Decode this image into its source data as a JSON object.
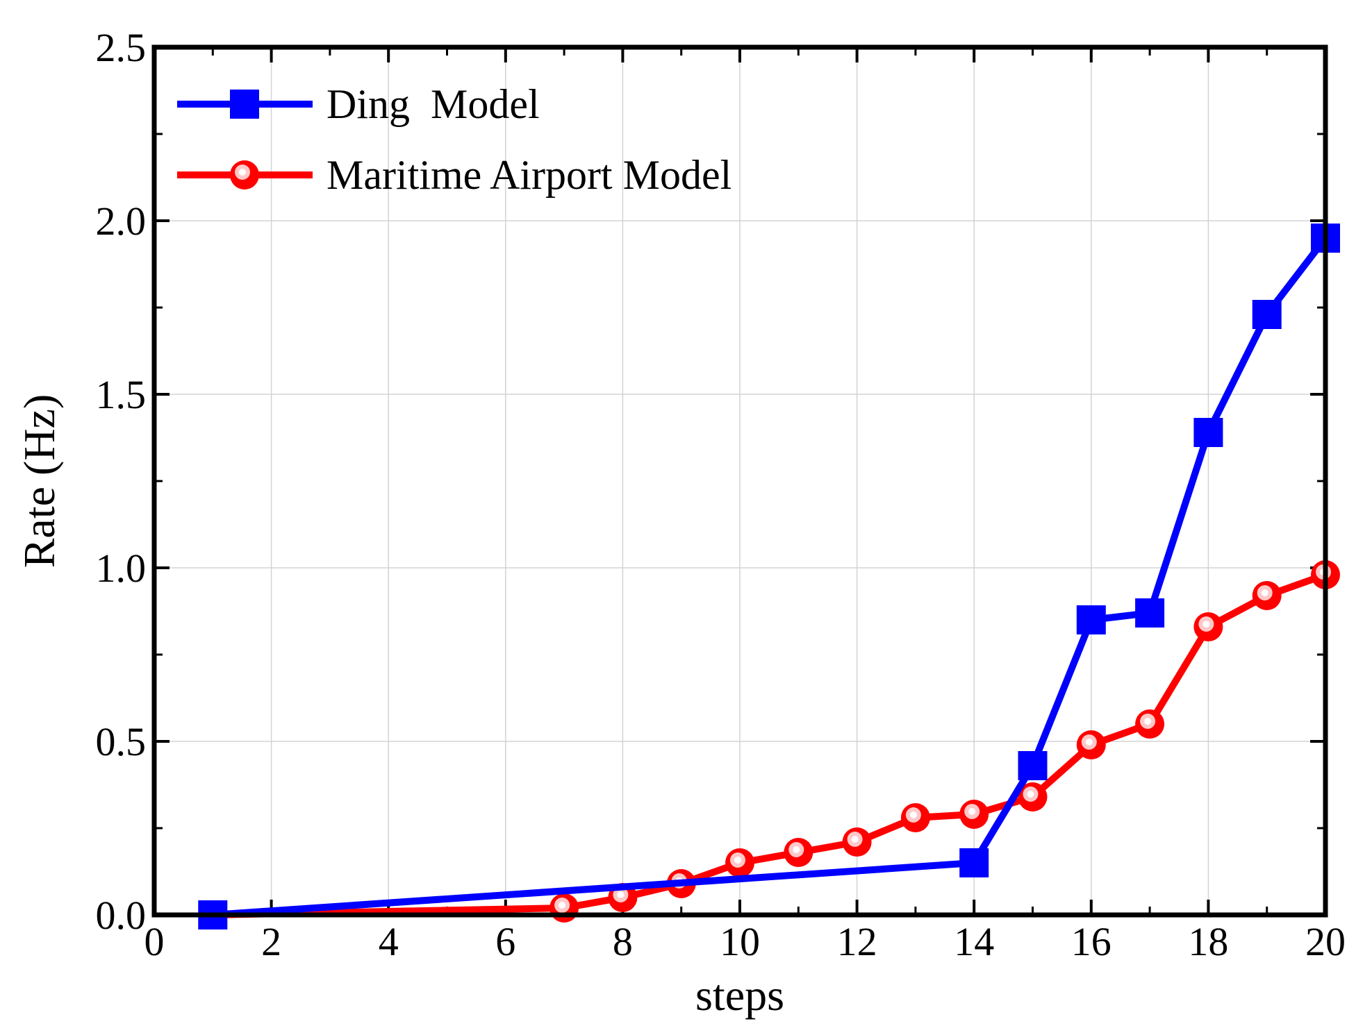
{
  "chart_data": {
    "type": "line",
    "title": "",
    "xlabel": "steps",
    "ylabel": "Rate (Hz)",
    "xlim": [
      0,
      20
    ],
    "ylim": [
      0,
      2.5
    ],
    "xticks": [
      "0",
      "2",
      "4",
      "6",
      "8",
      "10",
      "12",
      "14",
      "16",
      "18",
      "20"
    ],
    "yticks": [
      "0.0",
      "0.5",
      "1.0",
      "1.5",
      "2.0",
      "2.5"
    ],
    "grid": true,
    "legend_position": "top-left",
    "series": [
      {
        "name": "Ding  Model",
        "color": "#0000ff",
        "marker": "square",
        "x": [
          1,
          14,
          15,
          16,
          17,
          18,
          19,
          20
        ],
        "y": [
          0.0,
          0.15,
          0.43,
          0.85,
          0.87,
          1.39,
          1.73,
          1.95
        ]
      },
      {
        "name": "Maritime Airport Model",
        "color": "#ff0000",
        "marker": "circle",
        "x": [
          1,
          7,
          8,
          9,
          10,
          11,
          12,
          13,
          14,
          15,
          16,
          17,
          18,
          19,
          20
        ],
        "y": [
          0.0,
          0.02,
          0.05,
          0.09,
          0.15,
          0.18,
          0.21,
          0.28,
          0.29,
          0.34,
          0.49,
          0.55,
          0.83,
          0.92,
          0.98
        ]
      }
    ]
  }
}
